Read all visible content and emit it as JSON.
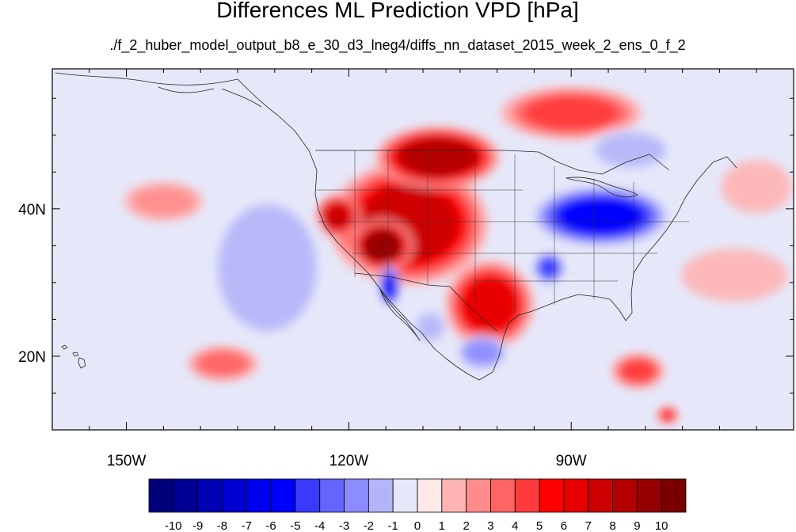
{
  "title": "Differences ML Prediction VPD [hPa]",
  "subtitle": "./f_2_huber_model_output_b8_e_30_d3_lneg4/diffs_nn_dataset_2015_week_2_ens_0_f_2",
  "map": {
    "projection": "lat-lon",
    "lon_range": [
      -160,
      -60
    ],
    "lat_range": [
      10,
      59
    ],
    "background_color": "#e6e8fa",
    "lat_labels": [
      {
        "value": 40,
        "text": "40N"
      },
      {
        "value": 20,
        "text": "20N"
      }
    ],
    "lon_labels": [
      {
        "value": -150,
        "text": "150W"
      },
      {
        "value": -120,
        "text": "120W"
      },
      {
        "value": -90,
        "text": "90W"
      }
    ],
    "lat_minor_ticks": [
      15,
      20,
      25,
      30,
      35,
      40,
      45,
      50,
      55
    ],
    "lon_minor_ticks": [
      -155,
      -150,
      -145,
      -140,
      -135,
      -130,
      -125,
      -120,
      -115,
      -110,
      -105,
      -100,
      -95,
      -90,
      -85,
      -80,
      -75,
      -70,
      -65
    ]
  },
  "chart_data": {
    "type": "heatmap",
    "field": "VPD difference",
    "units": "hPa",
    "color_range": [
      -10,
      10
    ],
    "regions": [
      {
        "name": "western-us-positive",
        "lon": -112,
        "lat": 38,
        "rlon": 9,
        "rlat": 7,
        "value": 7
      },
      {
        "name": "montana-positive",
        "lon": -108,
        "lat": 47,
        "rlon": 7,
        "rlat": 3.5,
        "value": 8
      },
      {
        "name": "southwest-strong-positive",
        "lon": -115.5,
        "lat": 35,
        "rlon": 3.5,
        "rlat": 3,
        "value": 9
      },
      {
        "name": "california-coast-positive",
        "lon": -121.5,
        "lat": 39,
        "rlon": 2.5,
        "rlat": 2.5,
        "value": 7
      },
      {
        "name": "texas-mexico-positive",
        "lon": -101,
        "lat": 27,
        "rlon": 5,
        "rlat": 5,
        "value": 6
      },
      {
        "name": "canada-positive",
        "lon": -90,
        "lat": 53,
        "rlon": 8,
        "rlat": 3,
        "value": 4
      },
      {
        "name": "baja-negative",
        "lon": -114.5,
        "lat": 29.5,
        "rlon": 1.2,
        "rlat": 2.3,
        "value": -7
      },
      {
        "name": "ohio-valley-negative",
        "lon": -86,
        "lat": 39,
        "rlon": 8,
        "rlat": 3.5,
        "value": -6
      },
      {
        "name": "arkansas-negative",
        "lon": -93,
        "lat": 32,
        "rlon": 1.8,
        "rlat": 1.8,
        "value": -5
      },
      {
        "name": "central-mexico-negative",
        "lon": -102,
        "lat": 20.5,
        "rlon": 3,
        "rlat": 2,
        "value": -3
      },
      {
        "name": "pacific-negative",
        "lon": -131,
        "lat": 32,
        "rlon": 7,
        "rlat": 9,
        "value": -2
      },
      {
        "name": "pacific-high-positive",
        "lon": -137,
        "lat": 19,
        "rlon": 4,
        "rlat": 2,
        "value": 3
      },
      {
        "name": "central-pacific-positive",
        "lon": -145,
        "lat": 41,
        "rlon": 4.5,
        "rlat": 2.2,
        "value": 2
      },
      {
        "name": "caribbean-positive",
        "lon": -81,
        "lat": 18,
        "rlon": 3,
        "rlat": 2,
        "value": 4
      },
      {
        "name": "caribbean-south-positive",
        "lon": -77,
        "lat": 12,
        "rlon": 1.2,
        "rlat": 1,
        "value": 5
      },
      {
        "name": "atlantic-positive",
        "lon": -68,
        "lat": 31,
        "rlon": 6,
        "rlat": 3,
        "value": 1
      },
      {
        "name": "atlantic-north-positive",
        "lon": -65,
        "lat": 43,
        "rlon": 4,
        "rlat": 3,
        "value": 1
      },
      {
        "name": "sea-of-cortez-negative",
        "lon": -109,
        "lat": 24,
        "rlon": 2,
        "rlat": 2,
        "value": -2
      },
      {
        "name": "hudson-bay-negative",
        "lon": -82,
        "lat": 48,
        "rlon": 5,
        "rlat": 2.5,
        "value": -2
      }
    ]
  },
  "colorbar": {
    "colors": [
      "#00007a",
      "#000096",
      "#0000b4",
      "#0000d2",
      "#0000f0",
      "#0000ff",
      "#3a3aff",
      "#6464ff",
      "#8c8cff",
      "#b4b4fa",
      "#e6e8fa",
      "#ffe8e8",
      "#ffb4b4",
      "#ff8c8c",
      "#ff6464",
      "#ff3a3a",
      "#ff0000",
      "#e60000",
      "#cc0000",
      "#b30000",
      "#960000",
      "#7a0000"
    ],
    "labels": [
      "-10",
      "-9",
      "-8",
      "-7",
      "-6",
      "-5",
      "-4",
      "-3",
      "-2",
      "-1",
      "0",
      "1",
      "2",
      "3",
      "4",
      "5",
      "6",
      "7",
      "8",
      "9",
      "10"
    ]
  }
}
